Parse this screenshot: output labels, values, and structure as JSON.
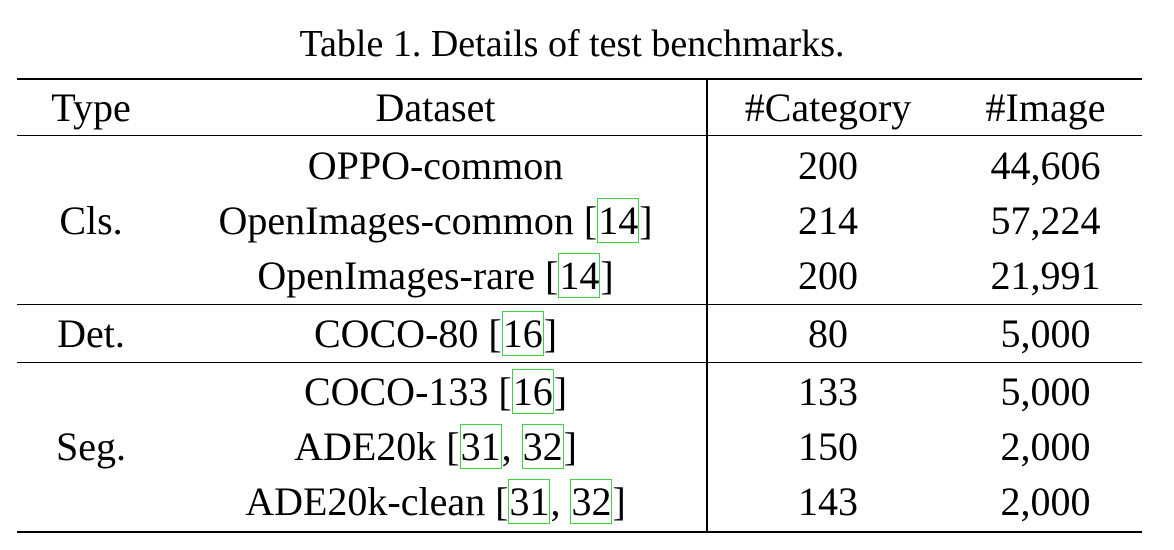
{
  "caption": "Table 1. Details of test benchmarks.",
  "headers": {
    "type": "Type",
    "dataset": "Dataset",
    "category": "#Category",
    "image": "#Image"
  },
  "groups": [
    {
      "type": "Cls.",
      "rows": [
        {
          "name": "OPPO-common",
          "refs": [],
          "category": "200",
          "image": "44,606"
        },
        {
          "name": "OpenImages-common",
          "refs": [
            "14"
          ],
          "category": "214",
          "image": "57,224"
        },
        {
          "name": "OpenImages-rare",
          "refs": [
            "14"
          ],
          "category": "200",
          "image": "21,991"
        }
      ]
    },
    {
      "type": "Det.",
      "rows": [
        {
          "name": "COCO-80",
          "refs": [
            "16"
          ],
          "category": "80",
          "image": "5,000"
        }
      ]
    },
    {
      "type": "Seg.",
      "rows": [
        {
          "name": "COCO-133",
          "refs": [
            "16"
          ],
          "category": "133",
          "image": "5,000"
        },
        {
          "name": "ADE20k",
          "refs": [
            "31",
            "32"
          ],
          "category": "150",
          "image": "2,000"
        },
        {
          "name": "ADE20k-clean",
          "refs": [
            "31",
            "32"
          ],
          "category": "143",
          "image": "2,000"
        }
      ]
    }
  ],
  "colors": {
    "citation_box": "#3fd43f",
    "text": "#000000"
  }
}
